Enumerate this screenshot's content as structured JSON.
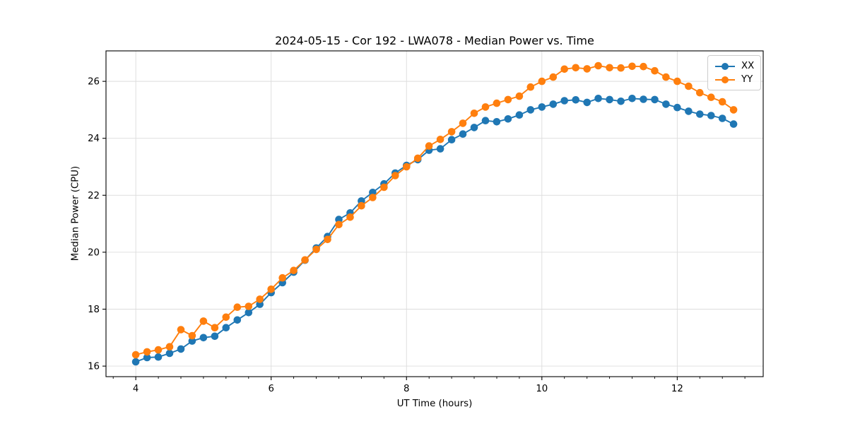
{
  "header": {
    "title": "2024-05-15 - Cor 192 - LWA078 - Median Power vs. Time"
  },
  "chart_data": {
    "type": "line",
    "title": "2024-05-15 - Cor 192 - LWA078 - Median Power vs. Time",
    "xlabel": "UT Time (hours)",
    "ylabel": "Median Power (CPU)",
    "xlim": [
      3.56,
      13.27
    ],
    "ylim": [
      15.63,
      27.07
    ],
    "xticks": [
      4,
      6,
      8,
      10,
      12
    ],
    "yticks": [
      16,
      18,
      20,
      22,
      24,
      26
    ],
    "x_minor_interval": 0.33333,
    "grid": true,
    "legend_position": "upper right",
    "marker": "circle",
    "x": [
      4.0,
      4.167,
      4.333,
      4.5,
      4.667,
      4.833,
      5.0,
      5.167,
      5.333,
      5.5,
      5.667,
      5.833,
      6.0,
      6.167,
      6.333,
      6.5,
      6.667,
      6.833,
      7.0,
      7.167,
      7.333,
      7.5,
      7.667,
      7.833,
      8.0,
      8.167,
      8.333,
      8.5,
      8.667,
      8.833,
      9.0,
      9.167,
      9.333,
      9.5,
      9.667,
      9.833,
      10.0,
      10.167,
      10.333,
      10.5,
      10.667,
      10.833,
      11.0,
      11.167,
      11.333,
      11.5,
      11.667,
      11.833,
      12.0,
      12.167,
      12.333,
      12.5,
      12.667,
      12.833
    ],
    "series": [
      {
        "name": "XX",
        "color": "#1f77b4",
        "values": [
          16.15,
          16.3,
          16.32,
          16.45,
          16.6,
          16.88,
          17.0,
          17.05,
          17.35,
          17.62,
          17.88,
          18.17,
          18.58,
          18.93,
          19.3,
          19.72,
          20.15,
          20.55,
          21.15,
          21.38,
          21.8,
          22.1,
          22.4,
          22.78,
          23.05,
          23.25,
          23.58,
          23.63,
          23.95,
          24.15,
          24.38,
          24.62,
          24.58,
          24.68,
          24.82,
          25.0,
          25.1,
          25.2,
          25.32,
          25.35,
          25.26,
          25.4,
          25.36,
          25.3,
          25.4,
          25.37,
          25.36,
          25.2,
          25.08,
          24.95,
          24.85,
          24.8,
          24.7,
          24.5
        ]
      },
      {
        "name": "YY",
        "color": "#ff7f0e",
        "values": [
          16.4,
          16.5,
          16.57,
          16.68,
          17.28,
          17.07,
          17.58,
          17.35,
          17.72,
          18.07,
          18.1,
          18.35,
          18.7,
          19.1,
          19.36,
          19.73,
          20.1,
          20.45,
          20.97,
          21.23,
          21.63,
          21.92,
          22.28,
          22.69,
          23.0,
          23.3,
          23.73,
          23.96,
          24.23,
          24.53,
          24.88,
          25.1,
          25.23,
          25.36,
          25.48,
          25.8,
          26.0,
          26.15,
          26.43,
          26.48,
          26.44,
          26.55,
          26.48,
          26.47,
          26.53,
          26.52,
          26.37,
          26.15,
          26.0,
          25.83,
          25.6,
          25.44,
          25.28,
          25.0
        ]
      }
    ],
    "style": {
      "grid_color": "#dcdcdc",
      "spine_color": "#000000",
      "tick_color": "#000000",
      "marker_radius": 5.3,
      "line_width": 1.9
    }
  },
  "legend": {
    "items": [
      {
        "label": "XX"
      },
      {
        "label": "YY"
      }
    ]
  }
}
